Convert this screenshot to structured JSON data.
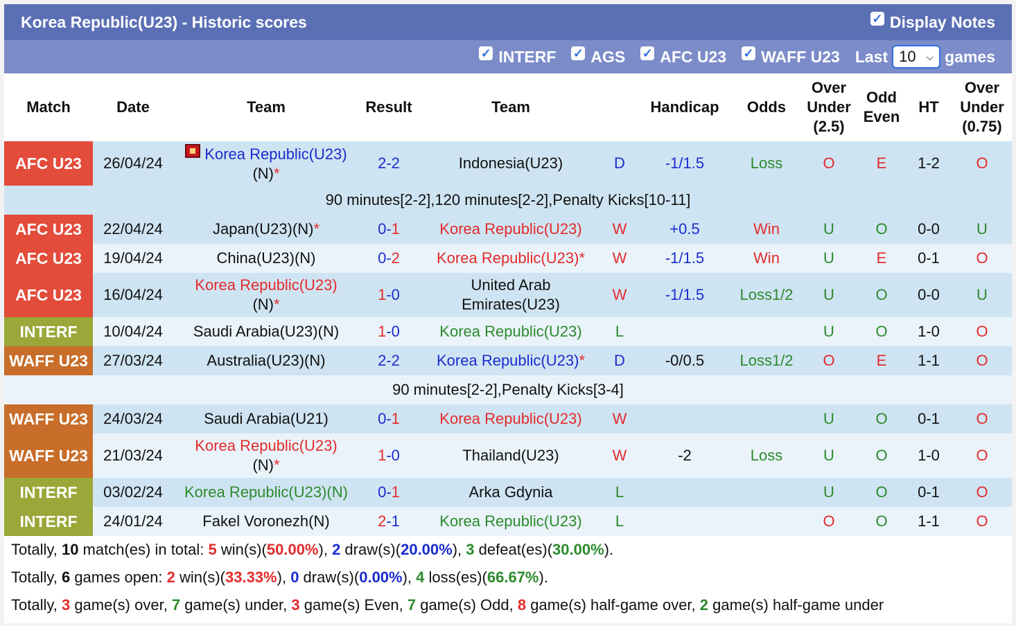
{
  "header": {
    "title": "Korea Republic(U23) - Historic scores",
    "display_notes_label": "Display Notes"
  },
  "filters": {
    "items": [
      "INTERF",
      "AGS",
      "AFC U23",
      "WAFF U23"
    ],
    "last_label": "Last",
    "last_value": "10",
    "games_label": "games"
  },
  "columns": {
    "match": "Match",
    "date": "Date",
    "team1": "Team",
    "result": "Result",
    "team2": "Team",
    "handicap": "Handicap",
    "odds": "Odds",
    "ou_line1": "Over",
    "ou_line2": "Under",
    "ou_line3": "(2.5)",
    "oe_line1": "Odd",
    "oe_line2": "Even",
    "ht": "HT",
    "ou2_line1": "Over",
    "ou2_line2": "Under",
    "ou2_line3": "(0.75)"
  },
  "rows": [
    {
      "league": "AFC U23",
      "date": "26/04/24",
      "team1": "Korea Republic(U23)",
      "team1b": "(N)",
      "team1star": "*",
      "score_a": "2",
      "score_b": "2",
      "team2": "Indonesia(U23)",
      "team2b": "",
      "res": "D",
      "handicap": "-1/1.5",
      "odds": "Loss",
      "ou": "O",
      "oe": "E",
      "ht": "1-2",
      "ou2": "O"
    },
    {
      "league": "AFC U23",
      "date": "22/04/24",
      "team1": "Japan(U23)(N)",
      "team1star": "*",
      "score_a": "0",
      "score_b": "1",
      "team2": "Korea Republic(U23)",
      "res": "W",
      "handicap": "+0.5",
      "odds": "Win",
      "ou": "U",
      "oe": "O",
      "ht": "0-0",
      "ou2": "U"
    },
    {
      "league": "AFC U23",
      "date": "19/04/24",
      "team1": "China(U23)(N)",
      "score_a": "0",
      "score_b": "2",
      "team2": "Korea Republic(U23)",
      "team2star": "*",
      "res": "W",
      "handicap": "-1/1.5",
      "odds": "Win",
      "ou": "U",
      "oe": "E",
      "ht": "0-1",
      "ou2": "O"
    },
    {
      "league": "AFC U23",
      "date": "16/04/24",
      "team1": "Korea Republic(U23)",
      "team1b": "(N)",
      "team1star": "*",
      "score_a": "1",
      "score_b": "0",
      "team2": "United Arab",
      "team2b": "Emirates(U23)",
      "res": "W",
      "handicap": "-1/1.5",
      "odds": "Loss1/2",
      "ou": "U",
      "oe": "O",
      "ht": "0-0",
      "ou2": "U"
    },
    {
      "league": "INTERF",
      "date": "10/04/24",
      "team1": "Saudi Arabia(U23)(N)",
      "score_a": "1",
      "score_b": "0",
      "team2": "Korea Republic(U23)",
      "res": "L",
      "handicap": "",
      "odds": "",
      "ou": "U",
      "oe": "O",
      "ht": "1-0",
      "ou2": "O"
    },
    {
      "league": "WAFF U23",
      "date": "27/03/24",
      "team1": "Australia(U23)(N)",
      "score_a": "2",
      "score_b": "2",
      "team2": "Korea Republic(U23)",
      "team2star": "*",
      "res": "D",
      "handicap": "-0/0.5",
      "odds": "Loss1/2",
      "ou": "O",
      "oe": "E",
      "ht": "1-1",
      "ou2": "O"
    },
    {
      "league": "WAFF U23",
      "date": "24/03/24",
      "team1": "Saudi Arabia(U21)",
      "score_a": "0",
      "score_b": "1",
      "team2": "Korea Republic(U23)",
      "res": "W",
      "handicap": "",
      "odds": "",
      "ou": "U",
      "oe": "O",
      "ht": "0-1",
      "ou2": "O"
    },
    {
      "league": "WAFF U23",
      "date": "21/03/24",
      "team1": "Korea Republic(U23)",
      "team1b": "(N)",
      "team1star": "*",
      "score_a": "1",
      "score_b": "0",
      "team2": "Thailand(U23)",
      "res": "W",
      "handicap": "-2",
      "odds": "Loss",
      "ou": "U",
      "oe": "O",
      "ht": "1-0",
      "ou2": "O"
    },
    {
      "league": "INTERF",
      "date": "03/02/24",
      "team1": "Korea Republic(U23)(N)",
      "score_a": "0",
      "score_b": "1",
      "team2": "Arka Gdynia",
      "res": "L",
      "handicap": "",
      "odds": "",
      "ou": "U",
      "oe": "O",
      "ht": "0-1",
      "ou2": "O"
    },
    {
      "league": "INTERF",
      "date": "24/01/24",
      "team1": "Fakel Voronezh(N)",
      "score_a": "2",
      "score_b": "1",
      "team2": "Korea Republic(U23)",
      "res": "L",
      "handicap": "",
      "odds": "",
      "ou": "O",
      "oe": "O",
      "ht": "1-1",
      "ou2": "O"
    }
  ],
  "notes": {
    "n1": "90 minutes[2-2],120 minutes[2-2],Penalty Kicks[10-11]",
    "n2": "90 minutes[2-2],Penalty Kicks[3-4]"
  },
  "summary": {
    "l1": {
      "a": "Totally, ",
      "b": "10",
      "c": " match(es) in total: ",
      "d": "5",
      "e": " win(s)(",
      "f": "50.00%",
      "g": "), ",
      "h": "2",
      "i": " draw(s)(",
      "j": "20.00%",
      "k": "), ",
      "l": "3",
      "m": " defeat(es)(",
      "n": "30.00%",
      "o": ")."
    },
    "l2": {
      "a": "Totally, ",
      "b": "6",
      "c": " games open: ",
      "d": "2",
      "e": " win(s)(",
      "f": "33.33%",
      "g": "), ",
      "h": "0",
      "i": " draw(s)(",
      "j": "0.00%",
      "k": "), ",
      "l": "4",
      "m": " loss(es)(",
      "n": "66.67%",
      "o": ")."
    },
    "l3": {
      "a": "Totally, ",
      "b": "3",
      "c": " game(s) over, ",
      "d": "7",
      "e": " game(s) under, ",
      "f": "3",
      "g": " game(s) Even, ",
      "h": "7",
      "i": " game(s) Odd, ",
      "j": "8",
      "k": " game(s) half-game over, ",
      "l": "2",
      "m": " game(s) half-game under"
    }
  },
  "colors": {
    "title_bar": "#5b6fb5",
    "filter_bar": "#7b8cc9",
    "afc": "#e34b3a",
    "interf": "#9aa83a",
    "waff": "#c86e2a",
    "row_dark": "#cfe4f2",
    "row_light": "#eaf3fa"
  }
}
